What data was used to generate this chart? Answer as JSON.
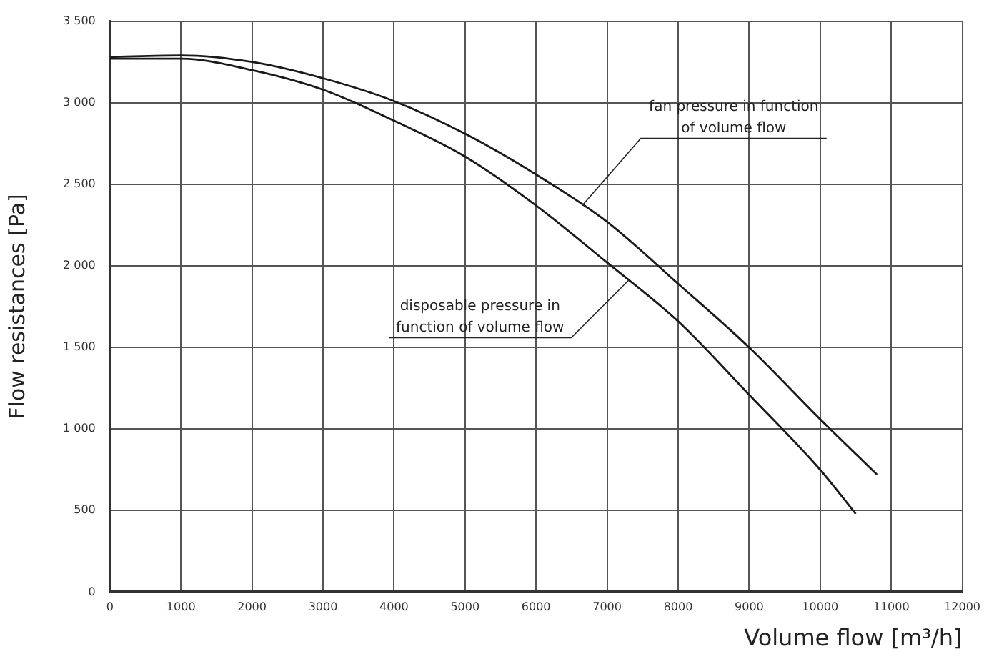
{
  "chart_data": {
    "type": "line",
    "xlabel": "Volume flow [m³/h]",
    "ylabel": "Flow resistances [Pa]",
    "xlim": [
      0,
      12000
    ],
    "xticks": [
      0,
      1000,
      2000,
      3000,
      4000,
      5000,
      6000,
      7000,
      8000,
      9000,
      10000,
      11000,
      12000
    ],
    "ylim": [
      0,
      3500
    ],
    "yticks": [
      0,
      500,
      {
        "value": 1000,
        "label": "1 000"
      },
      {
        "value": 1500,
        "label": "1 500"
      },
      {
        "value": 2000,
        "label": "2 000"
      },
      {
        "value": 2500,
        "label": "2 500"
      },
      {
        "value": 3000,
        "label": "3 000"
      },
      {
        "value": 3500,
        "label": "3 500"
      }
    ],
    "grid": true,
    "legend": false,
    "marker": "none",
    "line_style": "solid",
    "series": [
      {
        "color": "#1a1a1a",
        "x": [
          0,
          1000,
          2000,
          3000,
          4000,
          5000,
          6000,
          7000,
          8000,
          9000,
          10000,
          10800
        ],
        "values": [
          3280,
          3290,
          3250,
          3150,
          3010,
          2810,
          2560,
          2270,
          1890,
          1500,
          1060,
          720
        ]
      },
      {
        "color": "#1a1a1a",
        "x": [
          0,
          1000,
          2000,
          3000,
          4000,
          5000,
          6000,
          7000,
          8000,
          9000,
          10000,
          10500
        ],
        "values": [
          3270,
          3270,
          3200,
          3080,
          2890,
          2670,
          2370,
          2020,
          1660,
          1210,
          750,
          480
        ]
      }
    ],
    "annotations": [
      {
        "text": "fan pressure in function\nof volume flow",
        "x": 6650,
        "y": 2370
      },
      {
        "text": "disposable pressure in\nfunction of volume flow",
        "x": 7300,
        "y": 1910
      }
    ]
  }
}
